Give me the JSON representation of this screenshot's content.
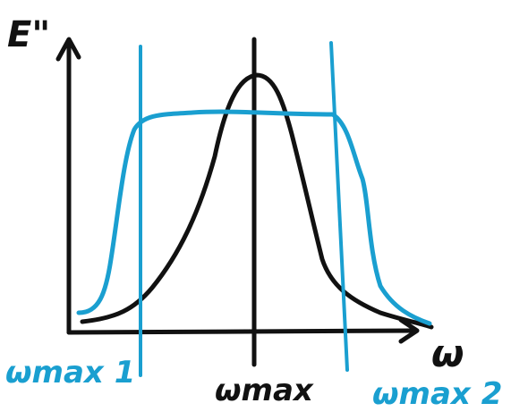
{
  "colors": {
    "ink": "#111111",
    "accent": "#1a9fd0"
  },
  "labels": {
    "y_axis": "E\"",
    "x_axis": "ω",
    "center_line": "ωmax",
    "left_line": "ωmax 1",
    "right_line": "ωmax 2"
  }
}
